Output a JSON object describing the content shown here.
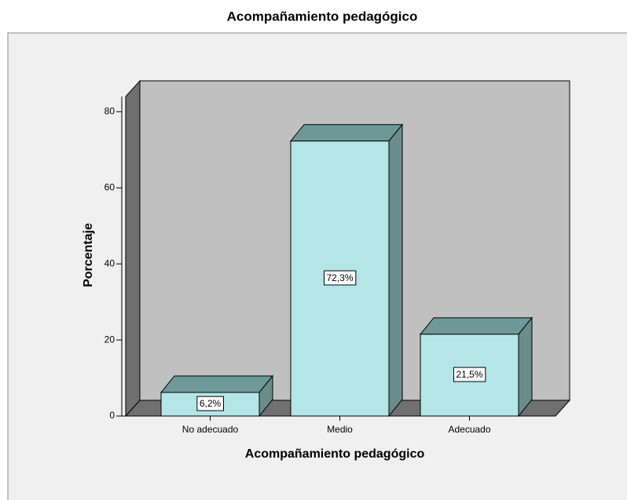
{
  "chart_data": {
    "type": "bar3d",
    "title": "Acompañamiento pedagógico",
    "xlabel": "Acompañamiento pedagógico",
    "ylabel": "Porcentaje",
    "categories": [
      "No adecuado",
      "Medio",
      "Adecuado"
    ],
    "values": [
      6.2,
      72.3,
      21.5
    ],
    "value_labels": [
      "6,2%",
      "72,3%",
      "21,5%"
    ],
    "color": "#b4e6e8",
    "ylim": [
      0,
      84
    ],
    "yticks": [
      0,
      20,
      40,
      60,
      80
    ],
    "grid": false
  }
}
